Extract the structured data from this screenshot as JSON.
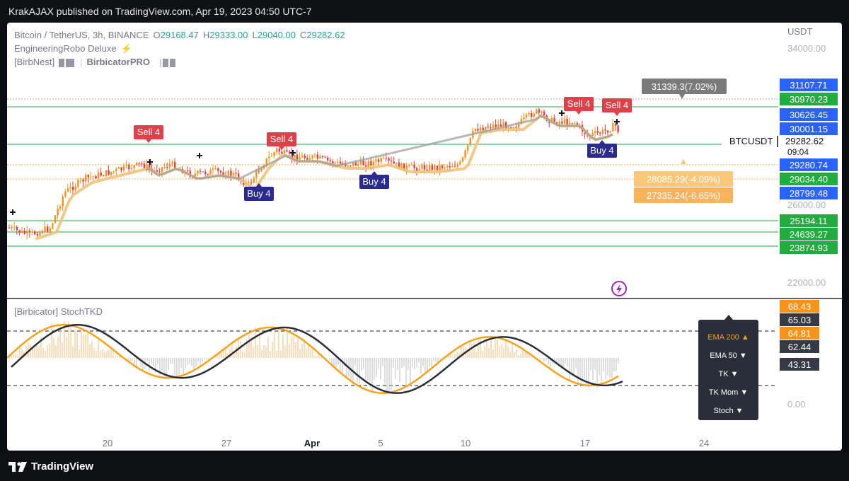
{
  "header": {
    "text": "KrakAJAX published on TradingView.com, Apr 19, 2023 04:50 UTC-7"
  },
  "footer": {
    "brand": "TradingView"
  },
  "legend": {
    "symbol": "Bitcoin / TetherUS, 3h, BINANCE",
    "o_label": "O",
    "o": "29168.47",
    "h_label": "H",
    "h": "29333.00",
    "l_label": "L",
    "l": "29040.00",
    "c_label": "C",
    "c": "29282.62",
    "indicator1": "EngineeringRobo Deluxe",
    "indicator1_icon": "lightning-icon",
    "indicator2": "[BirbNest]",
    "indicator3": "BirbicatorPRO"
  },
  "axis": {
    "currency": "USDT",
    "price_ticks": [
      "34000.00",
      "26000.00",
      "22000.00"
    ],
    "osc_ticks": [
      "0.00"
    ],
    "date_ticks": [
      "20",
      "27",
      "Apr",
      "5",
      "10",
      "17",
      "24"
    ]
  },
  "price_levels": [
    {
      "value": "31107.71",
      "color": "#2962ff"
    },
    {
      "value": "30970.23",
      "color": "#22ab3e"
    },
    {
      "value": "30626.45",
      "color": "#2962ff"
    },
    {
      "value": "30001.15",
      "color": "#2962ff"
    },
    {
      "value": "29280.74",
      "color": "#2962ff"
    },
    {
      "value": "29034.40",
      "color": "#22ab3e"
    },
    {
      "value": "28799.48",
      "color": "#2962ff"
    },
    {
      "value": "25194.11",
      "color": "#22ab3e"
    },
    {
      "value": "24639.27",
      "color": "#22ab3e"
    },
    {
      "value": "23874.93",
      "color": "#22ab3e"
    }
  ],
  "current_price": {
    "symbol": "BTCUSDT",
    "value": "29282.62",
    "countdown": "09:04"
  },
  "targets": {
    "upper": "31339.3(7.02%)",
    "lower1": "28085.29(-4.09%)",
    "lower2": "27335.24(-6.65%)"
  },
  "signals": {
    "sell": "Sell 4",
    "buy": "Buy 4"
  },
  "oscillator": {
    "title": "[Birbicator] StochTKD",
    "values": [
      {
        "value": "68.43",
        "color": "#f7931a"
      },
      {
        "value": "65.03",
        "color": "#363a45"
      },
      {
        "value": "64.81",
        "color": "#f7931a"
      },
      {
        "value": "62.44",
        "color": "#363a45"
      },
      {
        "value": "43.31",
        "color": "#363a45"
      }
    ]
  },
  "dropdown": {
    "items": [
      "EMA 200 ▲",
      "EMA 50 ▼",
      "TK ▼",
      "TK Mom ▼",
      "Stoch ▼"
    ]
  },
  "colors": {
    "bull": "#f7931a",
    "bear": "#e04040",
    "signal_sell": "#e0404a",
    "signal_buy": "#2b2a8f",
    "line_level": "#22ab3e"
  }
}
